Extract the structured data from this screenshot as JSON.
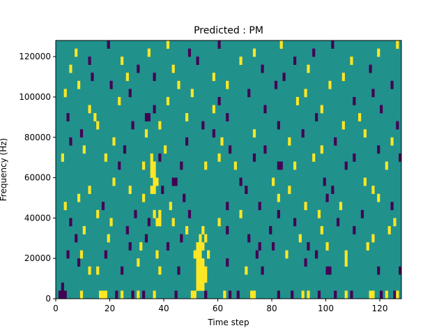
{
  "chart_data": {
    "type": "heatmap",
    "title": "Predicted : PM",
    "xlabel": "Time step",
    "ylabel": "Frequency (Hz)",
    "xlim": [
      0,
      128
    ],
    "ylim": [
      0,
      128000
    ],
    "x_ticks": [
      0,
      20,
      40,
      60,
      80,
      100,
      120
    ],
    "y_ticks": [
      0,
      20000,
      40000,
      60000,
      80000,
      100000,
      120000
    ],
    "x_tick_labels": [
      "0",
      "20",
      "40",
      "60",
      "80",
      "100",
      "120"
    ],
    "y_tick_labels": [
      "0",
      "20000",
      "40000",
      "60000",
      "80000",
      "100000",
      "120000"
    ],
    "bin_height": 4000,
    "value_levels": [
      0,
      1,
      2
    ],
    "colors": {
      "0": "#440154",
      "1": "#21918c",
      "2": "#fde725"
    },
    "background_value": 1,
    "cells": [
      {
        "x": 1,
        "y": 0,
        "v": 0
      },
      {
        "x": 2,
        "y": 0,
        "v": 0
      },
      {
        "x": 3,
        "y": 0,
        "v": 0
      },
      {
        "x": 2,
        "y": 4000,
        "v": 0
      },
      {
        "x": 9,
        "y": 0,
        "v": 2
      },
      {
        "x": 16,
        "y": 0,
        "v": 2
      },
      {
        "x": 17,
        "y": 0,
        "v": 2
      },
      {
        "x": 18,
        "y": 0,
        "v": 2
      },
      {
        "x": 22,
        "y": 0,
        "v": 0
      },
      {
        "x": 24,
        "y": 0,
        "v": 2
      },
      {
        "x": 28,
        "y": 0,
        "v": 0
      },
      {
        "x": 30,
        "y": 0,
        "v": 2
      },
      {
        "x": 32,
        "y": 0,
        "v": 0
      },
      {
        "x": 36,
        "y": 0,
        "v": 2
      },
      {
        "x": 44,
        "y": 0,
        "v": 0
      },
      {
        "x": 50,
        "y": 0,
        "v": 2
      },
      {
        "x": 51,
        "y": 0,
        "v": 2
      },
      {
        "x": 55,
        "y": 0,
        "v": 0
      },
      {
        "x": 62,
        "y": 0,
        "v": 2
      },
      {
        "x": 64,
        "y": 0,
        "v": 0
      },
      {
        "x": 67,
        "y": 0,
        "v": 0
      },
      {
        "x": 72,
        "y": 0,
        "v": 2
      },
      {
        "x": 73,
        "y": 0,
        "v": 2
      },
      {
        "x": 82,
        "y": 0,
        "v": 0
      },
      {
        "x": 87,
        "y": 0,
        "v": 0
      },
      {
        "x": 91,
        "y": 0,
        "v": 2
      },
      {
        "x": 93,
        "y": 0,
        "v": 2
      },
      {
        "x": 97,
        "y": 0,
        "v": 0
      },
      {
        "x": 103,
        "y": 0,
        "v": 0
      },
      {
        "x": 107,
        "y": 0,
        "v": 2
      },
      {
        "x": 109,
        "y": 0,
        "v": 0
      },
      {
        "x": 116,
        "y": 0,
        "v": 2
      },
      {
        "x": 117,
        "y": 0,
        "v": 2
      },
      {
        "x": 120,
        "y": 0,
        "v": 0
      },
      {
        "x": 122,
        "y": 0,
        "v": 2
      },
      {
        "x": 125,
        "y": 0,
        "v": 0
      },
      {
        "x": 126,
        "y": 0,
        "v": 2
      },
      {
        "x": 8,
        "y": 16000,
        "v": 0
      },
      {
        "x": 12,
        "y": 12000,
        "v": 2
      },
      {
        "x": 15,
        "y": 12000,
        "v": 2
      },
      {
        "x": 24,
        "y": 12000,
        "v": 0
      },
      {
        "x": 30,
        "y": 16000,
        "v": 2
      },
      {
        "x": 38,
        "y": 12000,
        "v": 2
      },
      {
        "x": 45,
        "y": 12000,
        "v": 0
      },
      {
        "x": 63,
        "y": 16000,
        "v": 0
      },
      {
        "x": 70,
        "y": 12000,
        "v": 2
      },
      {
        "x": 76,
        "y": 12000,
        "v": 0
      },
      {
        "x": 92,
        "y": 16000,
        "v": 0
      },
      {
        "x": 100,
        "y": 12000,
        "v": 0
      },
      {
        "x": 101,
        "y": 12000,
        "v": 0
      },
      {
        "x": 107,
        "y": 16000,
        "v": 2
      },
      {
        "x": 119,
        "y": 12000,
        "v": 0
      },
      {
        "x": 127,
        "y": 12000,
        "v": 0
      },
      {
        "x": 4,
        "y": 20000,
        "v": 0
      },
      {
        "x": 9,
        "y": 20000,
        "v": 2
      },
      {
        "x": 18,
        "y": 20000,
        "v": 0
      },
      {
        "x": 37,
        "y": 20000,
        "v": 2
      },
      {
        "x": 51,
        "y": 20000,
        "v": 2
      },
      {
        "x": 56,
        "y": 20000,
        "v": 2
      },
      {
        "x": 74,
        "y": 20000,
        "v": 0
      },
      {
        "x": 85,
        "y": 20000,
        "v": 2
      },
      {
        "x": 96,
        "y": 20000,
        "v": 0
      },
      {
        "x": 107,
        "y": 20000,
        "v": 2
      },
      {
        "x": 27,
        "y": 24000,
        "v": 0
      },
      {
        "x": 31,
        "y": 24000,
        "v": 2
      },
      {
        "x": 41,
        "y": 24000,
        "v": 0
      },
      {
        "x": 75,
        "y": 24000,
        "v": 0
      },
      {
        "x": 80,
        "y": 24000,
        "v": 0
      },
      {
        "x": 93,
        "y": 24000,
        "v": 0
      },
      {
        "x": 100,
        "y": 24000,
        "v": 2
      },
      {
        "x": 115,
        "y": 24000,
        "v": 2
      },
      {
        "x": 7,
        "y": 28000,
        "v": 0
      },
      {
        "x": 19,
        "y": 28000,
        "v": 2
      },
      {
        "x": 33,
        "y": 28000,
        "v": 0
      },
      {
        "x": 46,
        "y": 28000,
        "v": 0
      },
      {
        "x": 71,
        "y": 28000,
        "v": 0
      },
      {
        "x": 90,
        "y": 28000,
        "v": 2
      },
      {
        "x": 117,
        "y": 28000,
        "v": 2
      },
      {
        "x": 10,
        "y": 32000,
        "v": 2
      },
      {
        "x": 26,
        "y": 32000,
        "v": 0
      },
      {
        "x": 48,
        "y": 32000,
        "v": 2
      },
      {
        "x": 63,
        "y": 32000,
        "v": 0
      },
      {
        "x": 79,
        "y": 32000,
        "v": 0
      },
      {
        "x": 98,
        "y": 32000,
        "v": 2
      },
      {
        "x": 110,
        "y": 32000,
        "v": 0
      },
      {
        "x": 123,
        "y": 32000,
        "v": 2
      },
      {
        "x": 5,
        "y": 36000,
        "v": 0
      },
      {
        "x": 20,
        "y": 36000,
        "v": 2
      },
      {
        "x": 34,
        "y": 36000,
        "v": 0
      },
      {
        "x": 43,
        "y": 36000,
        "v": 2
      },
      {
        "x": 60,
        "y": 36000,
        "v": 2
      },
      {
        "x": 88,
        "y": 36000,
        "v": 0
      },
      {
        "x": 104,
        "y": 36000,
        "v": 0
      },
      {
        "x": 125,
        "y": 36000,
        "v": 2
      },
      {
        "x": 15,
        "y": 40000,
        "v": 2
      },
      {
        "x": 29,
        "y": 40000,
        "v": 0
      },
      {
        "x": 49,
        "y": 40000,
        "v": 0
      },
      {
        "x": 68,
        "y": 40000,
        "v": 2
      },
      {
        "x": 82,
        "y": 40000,
        "v": 0
      },
      {
        "x": 97,
        "y": 40000,
        "v": 2
      },
      {
        "x": 113,
        "y": 40000,
        "v": 0
      },
      {
        "x": 3,
        "y": 44000,
        "v": 2
      },
      {
        "x": 17,
        "y": 44000,
        "v": 0
      },
      {
        "x": 42,
        "y": 44000,
        "v": 2
      },
      {
        "x": 63,
        "y": 44000,
        "v": 0
      },
      {
        "x": 75,
        "y": 44000,
        "v": 0
      },
      {
        "x": 92,
        "y": 44000,
        "v": 2
      },
      {
        "x": 105,
        "y": 44000,
        "v": 2
      },
      {
        "x": 124,
        "y": 44000,
        "v": 0
      },
      {
        "x": 8,
        "y": 48000,
        "v": 2
      },
      {
        "x": 32,
        "y": 48000,
        "v": 2
      },
      {
        "x": 47,
        "y": 48000,
        "v": 0
      },
      {
        "x": 82,
        "y": 48000,
        "v": 2
      },
      {
        "x": 100,
        "y": 48000,
        "v": 0
      },
      {
        "x": 119,
        "y": 48000,
        "v": 2
      },
      {
        "x": 12,
        "y": 52000,
        "v": 2
      },
      {
        "x": 27,
        "y": 52000,
        "v": 2
      },
      {
        "x": 39,
        "y": 52000,
        "v": 0
      },
      {
        "x": 70,
        "y": 52000,
        "v": 0
      },
      {
        "x": 86,
        "y": 52000,
        "v": 2
      },
      {
        "x": 102,
        "y": 52000,
        "v": 0
      },
      {
        "x": 117,
        "y": 52000,
        "v": 2
      },
      {
        "x": 21,
        "y": 56000,
        "v": 2
      },
      {
        "x": 36,
        "y": 56000,
        "v": 0
      },
      {
        "x": 43,
        "y": 56000,
        "v": 0
      },
      {
        "x": 44,
        "y": 56000,
        "v": 0
      },
      {
        "x": 68,
        "y": 56000,
        "v": 0
      },
      {
        "x": 80,
        "y": 56000,
        "v": 2
      },
      {
        "x": 99,
        "y": 56000,
        "v": 0
      },
      {
        "x": 114,
        "y": 56000,
        "v": 2
      },
      {
        "x": 23,
        "y": 64000,
        "v": 0
      },
      {
        "x": 32,
        "y": 64000,
        "v": 2
      },
      {
        "x": 46,
        "y": 64000,
        "v": 0
      },
      {
        "x": 55,
        "y": 64000,
        "v": 2
      },
      {
        "x": 66,
        "y": 64000,
        "v": 2
      },
      {
        "x": 82,
        "y": 64000,
        "v": 0
      },
      {
        "x": 83,
        "y": 64000,
        "v": 0
      },
      {
        "x": 88,
        "y": 64000,
        "v": 2
      },
      {
        "x": 107,
        "y": 64000,
        "v": 0
      },
      {
        "x": 122,
        "y": 64000,
        "v": 2
      },
      {
        "x": 2,
        "y": 68000,
        "v": 2
      },
      {
        "x": 18,
        "y": 68000,
        "v": 2
      },
      {
        "x": 38,
        "y": 68000,
        "v": 0
      },
      {
        "x": 60,
        "y": 68000,
        "v": 2
      },
      {
        "x": 73,
        "y": 68000,
        "v": 0
      },
      {
        "x": 95,
        "y": 68000,
        "v": 2
      },
      {
        "x": 110,
        "y": 68000,
        "v": 0
      },
      {
        "x": 127,
        "y": 68000,
        "v": 0
      },
      {
        "x": 10,
        "y": 72000,
        "v": 2
      },
      {
        "x": 25,
        "y": 72000,
        "v": 0
      },
      {
        "x": 40,
        "y": 72000,
        "v": 2
      },
      {
        "x": 64,
        "y": 72000,
        "v": 0
      },
      {
        "x": 77,
        "y": 72000,
        "v": 0
      },
      {
        "x": 98,
        "y": 72000,
        "v": 2
      },
      {
        "x": 119,
        "y": 72000,
        "v": 0
      },
      {
        "x": 5,
        "y": 76000,
        "v": 0
      },
      {
        "x": 21,
        "y": 76000,
        "v": 2
      },
      {
        "x": 48,
        "y": 76000,
        "v": 0
      },
      {
        "x": 61,
        "y": 76000,
        "v": 2
      },
      {
        "x": 86,
        "y": 76000,
        "v": 2
      },
      {
        "x": 103,
        "y": 76000,
        "v": 0
      },
      {
        "x": 124,
        "y": 76000,
        "v": 2
      },
      {
        "x": 9,
        "y": 80000,
        "v": 0
      },
      {
        "x": 33,
        "y": 80000,
        "v": 2
      },
      {
        "x": 58,
        "y": 80000,
        "v": 0
      },
      {
        "x": 73,
        "y": 80000,
        "v": 2
      },
      {
        "x": 91,
        "y": 80000,
        "v": 0
      },
      {
        "x": 114,
        "y": 80000,
        "v": 2
      },
      {
        "x": 15,
        "y": 84000,
        "v": 2
      },
      {
        "x": 28,
        "y": 84000,
        "v": 0
      },
      {
        "x": 38,
        "y": 84000,
        "v": 2
      },
      {
        "x": 54,
        "y": 84000,
        "v": 0
      },
      {
        "x": 82,
        "y": 84000,
        "v": 0
      },
      {
        "x": 106,
        "y": 84000,
        "v": 2
      },
      {
        "x": 126,
        "y": 84000,
        "v": 0
      },
      {
        "x": 4,
        "y": 88000,
        "v": 0
      },
      {
        "x": 14,
        "y": 88000,
        "v": 2
      },
      {
        "x": 33,
        "y": 88000,
        "v": 0
      },
      {
        "x": 34,
        "y": 88000,
        "v": 0
      },
      {
        "x": 48,
        "y": 88000,
        "v": 2
      },
      {
        "x": 63,
        "y": 88000,
        "v": 0
      },
      {
        "x": 96,
        "y": 88000,
        "v": 0
      },
      {
        "x": 112,
        "y": 88000,
        "v": 2
      },
      {
        "x": 12,
        "y": 92000,
        "v": 2
      },
      {
        "x": 36,
        "y": 92000,
        "v": 0
      },
      {
        "x": 58,
        "y": 92000,
        "v": 2
      },
      {
        "x": 77,
        "y": 92000,
        "v": 0
      },
      {
        "x": 98,
        "y": 92000,
        "v": 2
      },
      {
        "x": 120,
        "y": 92000,
        "v": 0
      },
      {
        "x": 23,
        "y": 96000,
        "v": 2
      },
      {
        "x": 41,
        "y": 96000,
        "v": 2
      },
      {
        "x": 60,
        "y": 96000,
        "v": 0
      },
      {
        "x": 89,
        "y": 96000,
        "v": 2
      },
      {
        "x": 110,
        "y": 96000,
        "v": 0
      },
      {
        "x": 3,
        "y": 100000,
        "v": 2
      },
      {
        "x": 27,
        "y": 100000,
        "v": 0
      },
      {
        "x": 50,
        "y": 100000,
        "v": 2
      },
      {
        "x": 71,
        "y": 100000,
        "v": 0
      },
      {
        "x": 92,
        "y": 100000,
        "v": 2
      },
      {
        "x": 117,
        "y": 100000,
        "v": 0
      },
      {
        "x": 8,
        "y": 104000,
        "v": 2
      },
      {
        "x": 20,
        "y": 104000,
        "v": 0
      },
      {
        "x": 45,
        "y": 104000,
        "v": 2
      },
      {
        "x": 63,
        "y": 104000,
        "v": 2
      },
      {
        "x": 81,
        "y": 104000,
        "v": 0
      },
      {
        "x": 101,
        "y": 104000,
        "v": 2
      },
      {
        "x": 124,
        "y": 104000,
        "v": 0
      },
      {
        "x": 13,
        "y": 108000,
        "v": 0
      },
      {
        "x": 26,
        "y": 108000,
        "v": 2
      },
      {
        "x": 36,
        "y": 108000,
        "v": 0
      },
      {
        "x": 58,
        "y": 108000,
        "v": 2
      },
      {
        "x": 84,
        "y": 108000,
        "v": 0
      },
      {
        "x": 106,
        "y": 108000,
        "v": 2
      },
      {
        "x": 5,
        "y": 112000,
        "v": 2
      },
      {
        "x": 30,
        "y": 112000,
        "v": 0
      },
      {
        "x": 43,
        "y": 112000,
        "v": 2
      },
      {
        "x": 76,
        "y": 112000,
        "v": 0
      },
      {
        "x": 93,
        "y": 112000,
        "v": 2
      },
      {
        "x": 116,
        "y": 112000,
        "v": 0
      },
      {
        "x": 12,
        "y": 116000,
        "v": 0
      },
      {
        "x": 24,
        "y": 116000,
        "v": 2
      },
      {
        "x": 52,
        "y": 116000,
        "v": 0
      },
      {
        "x": 68,
        "y": 116000,
        "v": 2
      },
      {
        "x": 88,
        "y": 116000,
        "v": 0
      },
      {
        "x": 109,
        "y": 116000,
        "v": 2
      },
      {
        "x": 7,
        "y": 120000,
        "v": 2
      },
      {
        "x": 34,
        "y": 120000,
        "v": 2
      },
      {
        "x": 49,
        "y": 120000,
        "v": 0
      },
      {
        "x": 73,
        "y": 120000,
        "v": 2
      },
      {
        "x": 95,
        "y": 120000,
        "v": 0
      },
      {
        "x": 119,
        "y": 120000,
        "v": 2
      },
      {
        "x": 19,
        "y": 124000,
        "v": 0
      },
      {
        "x": 41,
        "y": 124000,
        "v": 2
      },
      {
        "x": 60,
        "y": 124000,
        "v": 0
      },
      {
        "x": 83,
        "y": 124000,
        "v": 2
      },
      {
        "x": 102,
        "y": 124000,
        "v": 0
      },
      {
        "x": 126,
        "y": 124000,
        "v": 2
      },
      {
        "x": 35,
        "y": 68000,
        "v": 2
      },
      {
        "x": 35,
        "y": 64000,
        "v": 2
      },
      {
        "x": 36,
        "y": 64000,
        "v": 2
      },
      {
        "x": 35,
        "y": 60000,
        "v": 2
      },
      {
        "x": 36,
        "y": 60000,
        "v": 2
      },
      {
        "x": 36,
        "y": 56000,
        "v": 2
      },
      {
        "x": 37,
        "y": 56000,
        "v": 2
      },
      {
        "x": 35,
        "y": 52000,
        "v": 2
      },
      {
        "x": 36,
        "y": 52000,
        "v": 2
      },
      {
        "x": 36,
        "y": 40000,
        "v": 2
      },
      {
        "x": 37,
        "y": 36000,
        "v": 2
      },
      {
        "x": 38,
        "y": 36000,
        "v": 2
      },
      {
        "x": 38,
        "y": 40000,
        "v": 2
      },
      {
        "x": 52,
        "y": 4000,
        "v": 2
      },
      {
        "x": 53,
        "y": 4000,
        "v": 2
      },
      {
        "x": 54,
        "y": 4000,
        "v": 2
      },
      {
        "x": 52,
        "y": 8000,
        "v": 2
      },
      {
        "x": 53,
        "y": 8000,
        "v": 2
      },
      {
        "x": 54,
        "y": 8000,
        "v": 2
      },
      {
        "x": 55,
        "y": 8000,
        "v": 2
      },
      {
        "x": 52,
        "y": 12000,
        "v": 2
      },
      {
        "x": 53,
        "y": 12000,
        "v": 2
      },
      {
        "x": 54,
        "y": 12000,
        "v": 2
      },
      {
        "x": 55,
        "y": 12000,
        "v": 2
      },
      {
        "x": 52,
        "y": 16000,
        "v": 2
      },
      {
        "x": 53,
        "y": 16000,
        "v": 2
      },
      {
        "x": 54,
        "y": 16000,
        "v": 2
      },
      {
        "x": 52,
        "y": 20000,
        "v": 2
      },
      {
        "x": 53,
        "y": 20000,
        "v": 2
      },
      {
        "x": 52,
        "y": 24000,
        "v": 2
      },
      {
        "x": 53,
        "y": 24000,
        "v": 2
      },
      {
        "x": 54,
        "y": 24000,
        "v": 2
      },
      {
        "x": 53,
        "y": 28000,
        "v": 2
      },
      {
        "x": 55,
        "y": 28000,
        "v": 2
      },
      {
        "x": 54,
        "y": 32000,
        "v": 2
      }
    ]
  }
}
